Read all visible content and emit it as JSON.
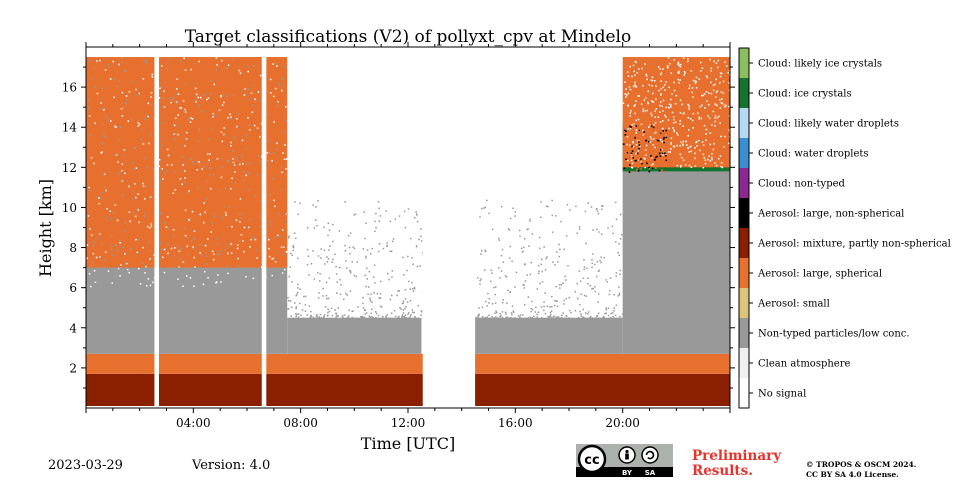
{
  "chart_data": {
    "type": "heatmap",
    "title": "Target classifications (V2) of pollyxt_cpv at Mindelo",
    "xlabel": "Time [UTC]",
    "ylabel": "Height [km]",
    "xlim_hours": [
      0,
      24
    ],
    "ylim_km": [
      0,
      18
    ],
    "x_ticks": [
      {
        "hour": 4,
        "label": "04:00"
      },
      {
        "hour": 8,
        "label": "08:00"
      },
      {
        "hour": 12,
        "label": "12:00"
      },
      {
        "hour": 16,
        "label": "16:00"
      },
      {
        "hour": 20,
        "label": "20:00"
      }
    ],
    "y_ticks": [
      2,
      4,
      6,
      8,
      10,
      12,
      14,
      16
    ],
    "y_tick_labels": [
      "2",
      "4",
      "6",
      "8",
      "10",
      "12",
      "14",
      "16"
    ],
    "legend": [
      {
        "label": "No signal",
        "color": "#ffffff"
      },
      {
        "label": "Clean atmosphere",
        "color": "#f0f0f0"
      },
      {
        "label": "Non-typed particles/low conc.",
        "color": "#999999"
      },
      {
        "label": "Aerosol: small",
        "color": "#dcc47a"
      },
      {
        "label": "Aerosol: large, spherical",
        "color": "#e8702f"
      },
      {
        "label": "Aerosol: mixture, partly non-spherical",
        "color": "#8b2000"
      },
      {
        "label": "Aerosol: large, non-spherical",
        "color": "#000000"
      },
      {
        "label": "Cloud: non-typed",
        "color": "#8b2892"
      },
      {
        "label": "Cloud: water droplets",
        "color": "#3b8ed0"
      },
      {
        "label": "Cloud: likely water droplets",
        "color": "#b4d9f5"
      },
      {
        "label": "Cloud: ice crystals",
        "color": "#13732f"
      },
      {
        "label": "Cloud: likely ice crystals",
        "color": "#8cbd5e"
      }
    ],
    "no_signal_gaps_hours": [
      [
        2.55,
        2.72
      ],
      [
        6.55,
        6.72
      ],
      [
        12.55,
        14.5
      ]
    ],
    "regions": [
      {
        "class": "Aerosol: mixture, partly non-spherical",
        "from_hour": 0,
        "to_hour": 24,
        "bottom_km": 0.1,
        "top_km": 1.7
      },
      {
        "class": "Aerosol: large, spherical",
        "from_hour": 0,
        "to_hour": 24,
        "bottom_km": 1.7,
        "top_km": 2.7
      },
      {
        "class": "Non-typed particles/low conc.",
        "from_hour": 0,
        "to_hour": 7.5,
        "bottom_km": 2.7,
        "top_km": 12.0
      },
      {
        "class": "Aerosol: large, spherical",
        "from_hour": 0,
        "to_hour": 7.5,
        "bottom_km": 7.0,
        "top_km": 17.5
      },
      {
        "class": "Non-typed particles/low conc.",
        "from_hour": 7.5,
        "to_hour": 12.5,
        "bottom_km": 2.7,
        "top_km": 4.5
      },
      {
        "class": "Non-typed particles/low conc.",
        "from_hour": 14.5,
        "to_hour": 20.0,
        "bottom_km": 2.7,
        "top_km": 4.5
      },
      {
        "class": "Non-typed particles/low conc.",
        "from_hour": 20.0,
        "to_hour": 24,
        "bottom_km": 2.7,
        "top_km": 12.0
      },
      {
        "class": "Cloud: ice crystals",
        "from_hour": 20.0,
        "to_hour": 24,
        "bottom_km": 11.8,
        "top_km": 14.2
      },
      {
        "class": "Aerosol: large, spherical",
        "from_hour": 20.0,
        "to_hour": 24,
        "bottom_km": 12.0,
        "top_km": 17.5
      }
    ],
    "grid": false
  },
  "footer": {
    "date": "2023-03-29",
    "version": "Version: 4.0",
    "preliminary_line1": "Preliminary",
    "preliminary_line2": "Results.",
    "copyright_line1": "© TROPOS & OSCM 2024.",
    "copyright_line2": "CC BY SA 4.0 License.",
    "cc_label": "cc",
    "by_label": "BY",
    "sa_label": "SA"
  }
}
